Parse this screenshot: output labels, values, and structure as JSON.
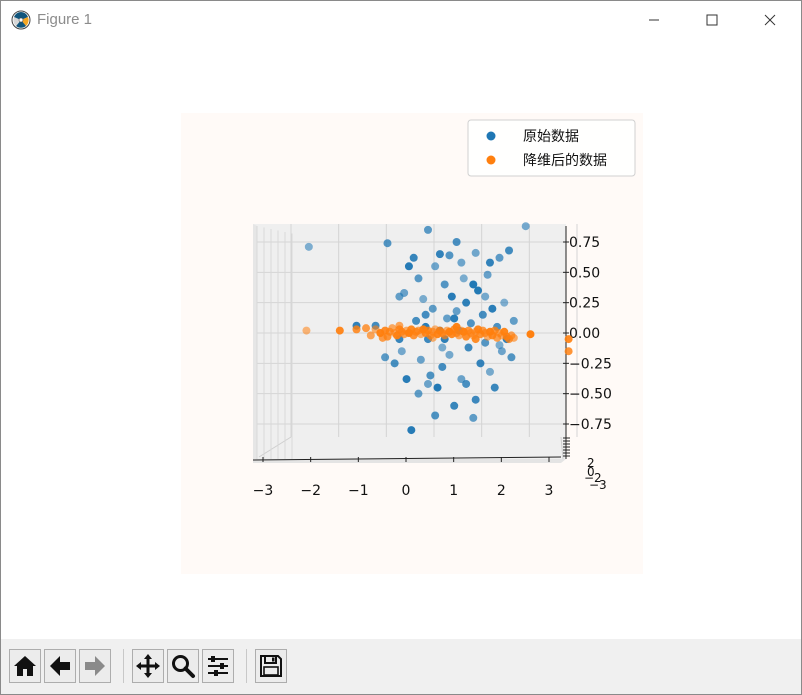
{
  "window": {
    "title": "Figure 1",
    "icons": {
      "app": "matplotlib-logo-icon",
      "minimize": "minimize-icon",
      "maximize": "maximize-icon",
      "close": "close-icon"
    }
  },
  "toolbar": {
    "buttons": [
      {
        "name": "home-button",
        "icon": "home-icon"
      },
      {
        "name": "back-button",
        "icon": "arrow-left-icon"
      },
      {
        "name": "forward-button",
        "icon": "arrow-right-icon"
      },
      {
        "name": "pan-button",
        "icon": "move-icon"
      },
      {
        "name": "zoom-button",
        "icon": "magnifier-icon"
      },
      {
        "name": "configure-subplots-button",
        "icon": "sliders-icon"
      },
      {
        "name": "save-button",
        "icon": "floppy-disk-icon"
      }
    ]
  },
  "chart_data": {
    "type": "scatter",
    "projection": "3d",
    "view": "front",
    "background": "#fffaf7",
    "legend": {
      "position": "top-right",
      "entries": [
        {
          "label": "原始数据",
          "color": "#1f77b4"
        },
        {
          "label": "降维后的数据",
          "color": "#ff7f0e"
        }
      ]
    },
    "x_ticks": [
      "−3",
      "−2",
      "−1",
      "0",
      "1",
      "2",
      "3"
    ],
    "z_ticks": [
      "0.75",
      "0.50",
      "0.25",
      "0.00",
      "−0.25",
      "−0.50",
      "−0.75"
    ],
    "y_ticks": [
      "2",
      "0",
      "−2",
      "−3"
    ],
    "xlim": [
      -3,
      3
    ],
    "zlim": [
      -1.0,
      1.0
    ],
    "series": [
      {
        "name": "原始数据",
        "color": "#1f77b4",
        "points": [
          [
            -2.5,
            0.71
          ],
          [
            -1.5,
            0.06
          ],
          [
            -1.1,
            0.06
          ],
          [
            -0.85,
            0.74
          ],
          [
            -0.6,
            0.3
          ],
          [
            -0.55,
            -0.15
          ],
          [
            -0.4,
            0.55
          ],
          [
            -0.3,
            0.62
          ],
          [
            -0.25,
            0.1
          ],
          [
            -0.2,
            0.45
          ],
          [
            -0.15,
            -0.22
          ],
          [
            -0.1,
            0.28
          ],
          [
            -0.05,
            0.05
          ],
          [
            0.0,
            -0.05
          ],
          [
            0.05,
            -0.35
          ],
          [
            0.1,
            0.2
          ],
          [
            0.15,
            0.55
          ],
          [
            0.2,
            -0.45
          ],
          [
            0.25,
            0.65
          ],
          [
            0.3,
            -0.28
          ],
          [
            0.35,
            0.4
          ],
          [
            0.4,
            0.12
          ],
          [
            0.45,
            -0.18
          ],
          [
            0.5,
            0.3
          ],
          [
            0.55,
            -0.6
          ],
          [
            0.6,
            0.75
          ],
          [
            0.65,
            0.02
          ],
          [
            0.7,
            -0.38
          ],
          [
            0.75,
            0.45
          ],
          [
            0.8,
            0.25
          ],
          [
            0.85,
            -0.12
          ],
          [
            0.9,
            0.08
          ],
          [
            0.95,
            -0.7
          ],
          [
            1.0,
            0.66
          ],
          [
            1.05,
            0.35
          ],
          [
            1.1,
            -0.25
          ],
          [
            1.15,
            0.15
          ],
          [
            1.2,
            -0.08
          ],
          [
            1.25,
            0.48
          ],
          [
            1.3,
            -0.32
          ],
          [
            1.35,
            0.2
          ],
          [
            1.4,
            -0.45
          ],
          [
            1.45,
            0.05
          ],
          [
            1.5,
            0.62
          ],
          [
            1.55,
            -0.15
          ],
          [
            1.6,
            0.25
          ],
          [
            1.65,
            -0.05
          ],
          [
            1.7,
            0.68
          ],
          [
            1.75,
            -0.2
          ],
          [
            1.8,
            0.1
          ],
          [
            2.05,
            0.88
          ],
          [
            -0.35,
            -0.8
          ],
          [
            -0.6,
            -0.05
          ],
          [
            -0.7,
            -0.25
          ],
          [
            0.0,
            0.85
          ],
          [
            -0.5,
            0.33
          ],
          [
            0.3,
            -0.12
          ],
          [
            0.55,
            0.12
          ],
          [
            1.0,
            -0.55
          ],
          [
            0.15,
            -0.68
          ],
          [
            -0.2,
            -0.5
          ],
          [
            0.7,
            0.58
          ],
          [
            0.95,
            0.4
          ],
          [
            1.3,
            0.58
          ],
          [
            -0.05,
            0.15
          ],
          [
            0.45,
            0.64
          ],
          [
            0.6,
            0.18
          ],
          [
            1.2,
            0.3
          ],
          [
            -0.45,
            -0.38
          ],
          [
            0.25,
            0.02
          ],
          [
            0.8,
            -0.42
          ],
          [
            -0.9,
            -0.2
          ],
          [
            0.0,
            -0.42
          ],
          [
            1.5,
            -0.1
          ],
          [
            0.35,
            -0.05
          ]
        ]
      },
      {
        "name": "降维后的数据",
        "color": "#ff7f0e",
        "points": [
          [
            -2.55,
            0.02
          ],
          [
            -1.85,
            0.02
          ],
          [
            -1.5,
            0.03
          ],
          [
            -1.3,
            0.04
          ],
          [
            -1.2,
            -0.02
          ],
          [
            -1.1,
            0.03
          ],
          [
            -1.0,
            0.0
          ],
          [
            -0.9,
            0.02
          ],
          [
            -0.85,
            -0.03
          ],
          [
            -0.8,
            0.01
          ],
          [
            -0.75,
            0.04
          ],
          [
            -0.7,
            0.0
          ],
          [
            -0.65,
            -0.02
          ],
          [
            -0.6,
            0.03
          ],
          [
            -0.55,
            0.01
          ],
          [
            -0.5,
            -0.01
          ],
          [
            -0.45,
            0.02
          ],
          [
            -0.4,
            0.0
          ],
          [
            -0.35,
            0.03
          ],
          [
            -0.3,
            -0.02
          ],
          [
            -0.25,
            0.01
          ],
          [
            -0.2,
            0.02
          ],
          [
            -0.15,
            -0.01
          ],
          [
            -0.1,
            0.03
          ],
          [
            -0.05,
            0.0
          ],
          [
            0.0,
            0.02
          ],
          [
            0.05,
            -0.02
          ],
          [
            0.1,
            0.01
          ],
          [
            0.15,
            0.03
          ],
          [
            0.2,
            -0.01
          ],
          [
            0.25,
            0.02
          ],
          [
            0.3,
            0.0
          ],
          [
            0.35,
            -0.02
          ],
          [
            0.4,
            0.02
          ],
          [
            0.45,
            0.01
          ],
          [
            0.5,
            -0.01
          ],
          [
            0.55,
            0.03
          ],
          [
            0.6,
            0.0
          ],
          [
            0.65,
            -0.02
          ],
          [
            0.7,
            0.02
          ],
          [
            0.75,
            0.01
          ],
          [
            0.8,
            -0.03
          ],
          [
            0.85,
            0.02
          ],
          [
            0.9,
            0.0
          ],
          [
            0.95,
            -0.02
          ],
          [
            1.0,
            0.01
          ],
          [
            1.05,
            0.03
          ],
          [
            1.1,
            -0.01
          ],
          [
            1.15,
            0.02
          ],
          [
            1.2,
            0.0
          ],
          [
            1.25,
            -0.03
          ],
          [
            1.3,
            0.01
          ],
          [
            1.35,
            -0.02
          ],
          [
            1.4,
            0.02
          ],
          [
            1.45,
            -0.04
          ],
          [
            1.5,
            0.0
          ],
          [
            1.55,
            -0.02
          ],
          [
            1.6,
            0.01
          ],
          [
            1.65,
            -0.03
          ],
          [
            1.7,
            -0.05
          ],
          [
            1.75,
            -0.02
          ],
          [
            1.8,
            -0.04
          ],
          [
            2.15,
            -0.01
          ],
          [
            2.95,
            -0.05
          ],
          [
            2.95,
            -0.15
          ],
          [
            -0.95,
            -0.04
          ],
          [
            -0.6,
            0.06
          ],
          [
            0.1,
            -0.04
          ],
          [
            0.6,
            0.05
          ],
          [
            1.0,
            -0.05
          ]
        ]
      }
    ]
  }
}
